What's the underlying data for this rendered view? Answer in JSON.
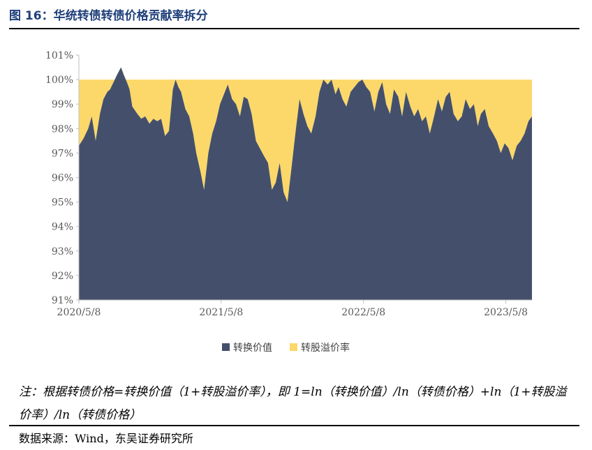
{
  "title": "图 16：华统转债转债价格贡献率拆分",
  "note": "注：根据转债价格=转换价值（1+转股溢价率），即 1=ln（转换价值）/ln（转债价格）+ln（1+转股溢价率）/ln（转债价格）",
  "source": "数据来源：Wind，东吴证券研究所",
  "colors": {
    "conversion": "#44506b",
    "premium": "#fcd86a",
    "title": "#1f3f7a"
  },
  "chart_data": {
    "type": "area",
    "stacked": true,
    "x_tick_labels": [
      "2020/5/8",
      "2021/5/8",
      "2022/5/8",
      "2023/5/8"
    ],
    "x_range": [
      "2020/5/8",
      "2023/7/14"
    ],
    "ylim": [
      0.91,
      1.01
    ],
    "y_tick_labels": [
      "91%",
      "92%",
      "93%",
      "94%",
      "95%",
      "96%",
      "97%",
      "98%",
      "99%",
      "100%",
      "101%"
    ],
    "y_tick_values": [
      0.91,
      0.92,
      0.93,
      0.94,
      0.95,
      0.96,
      0.97,
      0.98,
      0.99,
      1.0,
      1.01
    ],
    "legend_position": "bottom",
    "grid": false,
    "series": [
      {
        "name": "转换价值",
        "color": "#44506b",
        "points": [
          [
            "2020/5/8",
            0.973
          ],
          [
            "2020/5/20",
            0.976
          ],
          [
            "2020/6/1",
            0.98
          ],
          [
            "2020/6/10",
            0.985
          ],
          [
            "2020/6/20",
            0.975
          ],
          [
            "2020/7/1",
            0.986
          ],
          [
            "2020/7/10",
            0.992
          ],
          [
            "2020/7/20",
            0.995
          ],
          [
            "2020/7/27",
            0.996
          ],
          [
            "2020/8/5",
            0.999
          ],
          [
            "2020/8/14",
            1.002
          ],
          [
            "2020/8/24",
            1.005
          ],
          [
            "2020/8/31",
            1.002
          ],
          [
            "2020/9/8",
            0.999
          ],
          [
            "2020/9/15",
            0.996
          ],
          [
            "2020/9/22",
            0.989
          ],
          [
            "2020/10/5",
            0.986
          ],
          [
            "2020/10/15",
            0.984
          ],
          [
            "2020/10/25",
            0.985
          ],
          [
            "2020/11/5",
            0.982
          ],
          [
            "2020/11/15",
            0.984
          ],
          [
            "2020/11/25",
            0.983
          ],
          [
            "2020/12/5",
            0.984
          ],
          [
            "2020/12/15",
            0.977
          ],
          [
            "2020/12/25",
            0.979
          ],
          [
            "2021/1/4",
            0.996
          ],
          [
            "2021/1/11",
            1.0
          ],
          [
            "2021/1/18",
            0.997
          ],
          [
            "2021/1/25",
            0.995
          ],
          [
            "2021/2/5",
            0.988
          ],
          [
            "2021/2/15",
            0.985
          ],
          [
            "2021/2/25",
            0.978
          ],
          [
            "2021/3/5",
            0.97
          ],
          [
            "2021/3/15",
            0.963
          ],
          [
            "2021/3/25",
            0.955
          ],
          [
            "2021/4/5",
            0.97
          ],
          [
            "2021/4/15",
            0.978
          ],
          [
            "2021/4/25",
            0.983
          ],
          [
            "2021/5/5",
            0.99
          ],
          [
            "2021/5/15",
            0.994
          ],
          [
            "2021/5/25",
            0.998
          ],
          [
            "2021/6/5",
            0.992
          ],
          [
            "2021/6/15",
            0.99
          ],
          [
            "2021/6/25",
            0.985
          ],
          [
            "2021/7/5",
            0.993
          ],
          [
            "2021/7/15",
            0.992
          ],
          [
            "2021/7/25",
            0.986
          ],
          [
            "2021/8/5",
            0.975
          ],
          [
            "2021/8/15",
            0.972
          ],
          [
            "2021/8/25",
            0.969
          ],
          [
            "2021/9/5",
            0.966
          ],
          [
            "2021/9/15",
            0.955
          ],
          [
            "2021/9/25",
            0.958
          ],
          [
            "2021/10/5",
            0.966
          ],
          [
            "2021/10/15",
            0.954
          ],
          [
            "2021/10/25",
            0.95
          ],
          [
            "2021/11/5",
            0.965
          ],
          [
            "2021/11/15",
            0.979
          ],
          [
            "2021/11/25",
            0.992
          ],
          [
            "2021/12/5",
            0.986
          ],
          [
            "2021/12/15",
            0.981
          ],
          [
            "2021/12/25",
            0.978
          ],
          [
            "2022/1/5",
            0.985
          ],
          [
            "2022/1/15",
            0.995
          ],
          [
            "2022/1/25",
            1.0
          ],
          [
            "2022/2/5",
            0.998
          ],
          [
            "2022/2/15",
            1.0
          ],
          [
            "2022/2/25",
            0.994
          ],
          [
            "2022/3/5",
            0.997
          ],
          [
            "2022/3/15",
            0.992
          ],
          [
            "2022/3/25",
            0.989
          ],
          [
            "2022/4/5",
            0.995
          ],
          [
            "2022/4/15",
            0.997
          ],
          [
            "2022/4/25",
            0.999
          ],
          [
            "2022/5/5",
            1.0
          ],
          [
            "2022/5/15",
            0.997
          ],
          [
            "2022/5/25",
            0.995
          ],
          [
            "2022/6/5",
            0.987
          ],
          [
            "2022/6/15",
            0.995
          ],
          [
            "2022/6/25",
            0.999
          ],
          [
            "2022/7/5",
            0.99
          ],
          [
            "2022/7/15",
            0.986
          ],
          [
            "2022/7/25",
            0.996
          ],
          [
            "2022/8/5",
            0.993
          ],
          [
            "2022/8/15",
            0.985
          ],
          [
            "2022/8/25",
            0.995
          ],
          [
            "2022/9/5",
            0.989
          ],
          [
            "2022/9/15",
            0.985
          ],
          [
            "2022/9/25",
            0.988
          ],
          [
            "2022/10/5",
            0.983
          ],
          [
            "2022/10/15",
            0.985
          ],
          [
            "2022/10/25",
            0.978
          ],
          [
            "2022/11/5",
            0.985
          ],
          [
            "2022/11/15",
            0.992
          ],
          [
            "2022/11/25",
            0.987
          ],
          [
            "2022/12/5",
            0.993
          ],
          [
            "2022/12/15",
            0.995
          ],
          [
            "2022/12/25",
            0.986
          ],
          [
            "2023/1/5",
            0.983
          ],
          [
            "2023/1/15",
            0.985
          ],
          [
            "2023/1/25",
            0.992
          ],
          [
            "2023/2/5",
            0.988
          ],
          [
            "2023/2/15",
            0.99
          ],
          [
            "2023/2/25",
            0.981
          ],
          [
            "2023/3/5",
            0.986
          ],
          [
            "2023/3/15",
            0.988
          ],
          [
            "2023/3/25",
            0.981
          ],
          [
            "2023/4/5",
            0.978
          ],
          [
            "2023/4/15",
            0.975
          ],
          [
            "2023/4/25",
            0.97
          ],
          [
            "2023/5/5",
            0.974
          ],
          [
            "2023/5/15",
            0.972
          ],
          [
            "2023/5/25",
            0.967
          ],
          [
            "2023/6/5",
            0.973
          ],
          [
            "2023/6/15",
            0.975
          ],
          [
            "2023/6/25",
            0.978
          ],
          [
            "2023/7/5",
            0.983
          ],
          [
            "2023/7/14",
            0.985
          ]
        ]
      },
      {
        "name": "转股溢价率",
        "color": "#fcd86a",
        "note_on_values": "stacked on top; sum of both series equals 100% except where conversion value exceeds 100%",
        "top": 1.0
      }
    ]
  },
  "legend": [
    {
      "label": "转换价值",
      "color": "#44506b"
    },
    {
      "label": "转股溢价率",
      "color": "#fcd86a"
    }
  ]
}
